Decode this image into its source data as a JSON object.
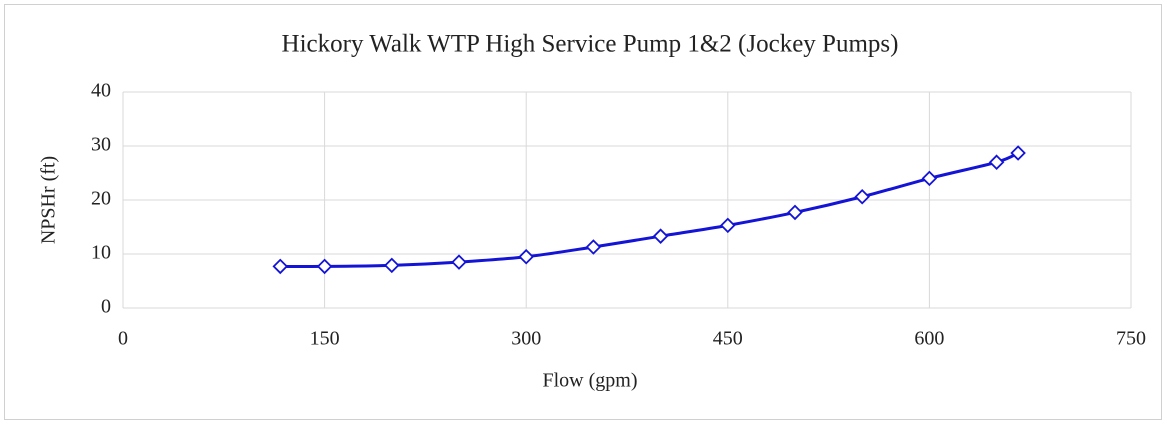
{
  "chart_data": {
    "type": "scatter",
    "title": "Hickory Walk WTP High Service Pump 1&2 (Jockey Pumps)",
    "x_label": "Flow (gpm)",
    "y_label": "NPSHr (ft)",
    "series": [
      {
        "name": "NPSHr",
        "color": "#1414d6",
        "x": [
          117,
          150,
          200,
          250,
          300,
          350,
          400,
          450,
          500,
          550,
          600,
          650,
          666
        ],
        "values": [
          7.7,
          7.7,
          7.9,
          8.5,
          9.5,
          11.3,
          13.3,
          15.3,
          17.7,
          20.6,
          24,
          27,
          28.7
        ]
      }
    ],
    "xlim": [
      0,
      750
    ],
    "xticks": [
      0,
      150,
      300,
      450,
      600,
      750
    ],
    "ylim": [
      0,
      40
    ],
    "yticks": [
      0,
      10,
      20,
      30,
      40
    ],
    "grid": true,
    "smooth": true
  }
}
